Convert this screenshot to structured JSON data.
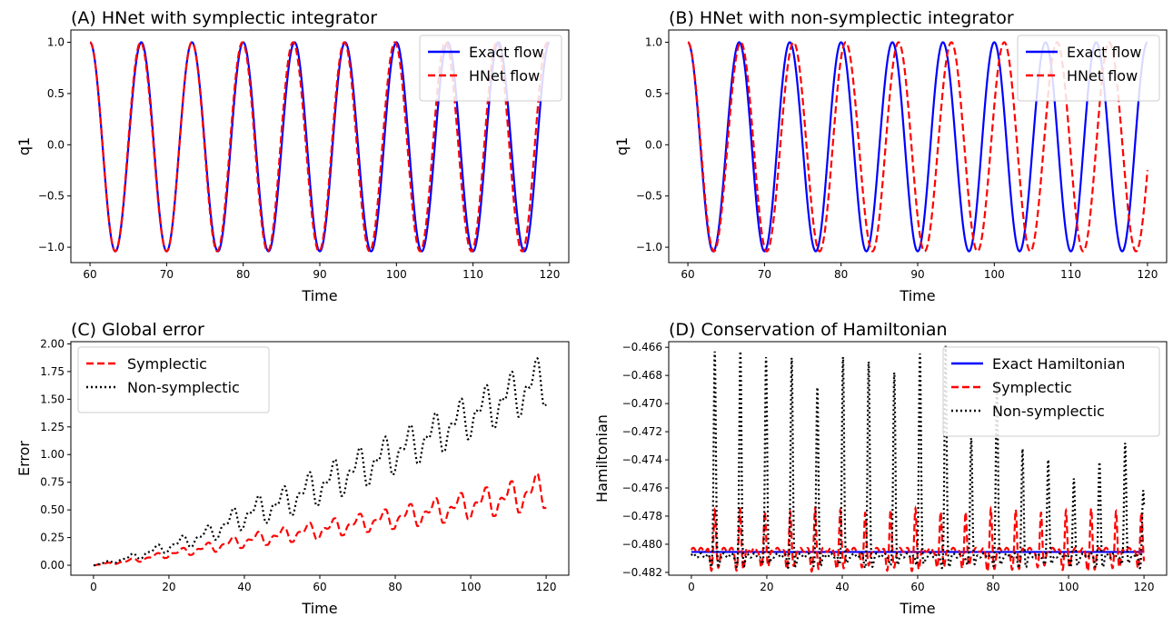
{
  "chart_data": [
    {
      "type": "line",
      "title": "(A) HNet with symplectic integrator",
      "xlabel": "Time",
      "ylabel": "q1",
      "xlim": [
        57.5,
        122.5
      ],
      "ylim": [
        -1.15,
        1.12
      ],
      "xticks": [
        60,
        70,
        80,
        90,
        100,
        110,
        120
      ],
      "yticks": [
        -1.0,
        -0.5,
        0.0,
        0.5,
        1.0
      ],
      "xtick_labels": [
        "60",
        "70",
        "80",
        "90",
        "100",
        "110",
        "120"
      ],
      "ytick_labels": [
        "−1.0",
        "−0.5",
        "0.0",
        "0.5",
        "1.0"
      ],
      "legend_position": "top-right",
      "series": [
        {
          "name": "Exact flow",
          "style": "solid",
          "color": "#0000ff",
          "description_formula": "cos(2*pi*(t-60)/6.67), amplitude 1.0, minimum -1.04",
          "peaks_x": [
            60.0,
            66.7,
            73.3,
            80.0,
            86.7,
            93.3,
            100.0,
            106.7,
            113.3,
            120.0
          ],
          "troughs_x": [
            63.3,
            70.0,
            76.7,
            83.3,
            90.0,
            96.7,
            103.3,
            110.0,
            116.7
          ],
          "y_max": 1.0,
          "y_min": -1.04
        },
        {
          "name": "HNet flow",
          "style": "dashed",
          "color": "#ff0000",
          "peaks_x": [
            60.0,
            66.6,
            73.3,
            79.9,
            86.5,
            93.2,
            99.8,
            106.4,
            113.1
          ],
          "troughs_x": [
            63.3,
            70.0,
            76.6,
            83.2,
            89.9,
            96.5,
            103.1,
            109.8,
            116.4
          ],
          "y_max": 1.0,
          "y_min": -1.04
        }
      ]
    },
    {
      "type": "line",
      "title": "(B) HNet with non-symplectic integrator",
      "xlabel": "Time",
      "ylabel": "q1",
      "xlim": [
        57.5,
        122.5
      ],
      "ylim": [
        -1.15,
        1.12
      ],
      "xticks": [
        60,
        70,
        80,
        90,
        100,
        110,
        120
      ],
      "yticks": [
        -1.0,
        -0.5,
        0.0,
        0.5,
        1.0
      ],
      "xtick_labels": [
        "60",
        "70",
        "80",
        "90",
        "100",
        "110",
        "120"
      ],
      "ytick_labels": [
        "−1.0",
        "−0.5",
        "0.0",
        "0.5",
        "1.0"
      ],
      "legend_position": "top-right",
      "series": [
        {
          "name": "Exact flow",
          "style": "solid",
          "color": "#0000ff",
          "peaks_x": [
            60.0,
            66.7,
            73.3,
            80.0,
            86.7,
            93.3,
            100.0,
            106.7,
            113.3,
            120.0
          ],
          "troughs_x": [
            63.3,
            70.0,
            76.7,
            83.3,
            90.0,
            96.7,
            103.3,
            110.0,
            116.7
          ],
          "y_max": 1.0,
          "y_min": -1.04
        },
        {
          "name": "HNet flow",
          "style": "dashed",
          "color": "#ff0000",
          "peaks_x": [
            60.0,
            66.9,
            73.8,
            80.6,
            87.5,
            94.4,
            101.3,
            108.2,
            115.0
          ],
          "troughs_x": [
            63.4,
            70.3,
            77.2,
            84.1,
            90.9,
            97.8,
            104.7,
            111.6,
            118.5
          ],
          "y_max": 1.0,
          "y_min": -1.04
        }
      ]
    },
    {
      "type": "line",
      "title": "(C) Global error",
      "xlabel": "Time",
      "ylabel": "Error",
      "xlim": [
        -6,
        126
      ],
      "ylim": [
        -0.09,
        2.02
      ],
      "xticks": [
        0,
        20,
        40,
        60,
        80,
        100,
        120
      ],
      "yticks": [
        0.0,
        0.25,
        0.5,
        0.75,
        1.0,
        1.25,
        1.5,
        1.75,
        2.0
      ],
      "xtick_labels": [
        "0",
        "20",
        "40",
        "60",
        "80",
        "100",
        "120"
      ],
      "ytick_labels": [
        "0.00",
        "0.25",
        "0.50",
        "0.75",
        "1.00",
        "1.25",
        "1.50",
        "1.75",
        "2.00"
      ],
      "legend_position": "top-left",
      "series": [
        {
          "name": "Symplectic",
          "style": "dashed",
          "color": "#ff0000",
          "x": [
            0,
            10,
            20,
            30,
            40,
            50,
            60,
            70,
            80,
            90,
            100,
            110,
            120
          ],
          "envelope_low": [
            0.0,
            0.02,
            0.07,
            0.11,
            0.16,
            0.2,
            0.24,
            0.29,
            0.33,
            0.37,
            0.42,
            0.46,
            0.52
          ],
          "envelope_high": [
            0.0,
            0.06,
            0.13,
            0.2,
            0.28,
            0.34,
            0.4,
            0.46,
            0.52,
            0.6,
            0.67,
            0.75,
            0.85
          ]
        },
        {
          "name": "Non-symplectic",
          "style": "dotted",
          "color": "#000000",
          "x": [
            0,
            10,
            20,
            30,
            40,
            50,
            60,
            70,
            80,
            90,
            100,
            110,
            120
          ],
          "envelope_low": [
            0.0,
            0.04,
            0.12,
            0.2,
            0.33,
            0.42,
            0.55,
            0.68,
            0.83,
            0.98,
            1.15,
            1.3,
            1.45
          ],
          "envelope_high": [
            0.0,
            0.1,
            0.22,
            0.35,
            0.58,
            0.7,
            0.89,
            1.05,
            1.2,
            1.36,
            1.55,
            1.73,
            1.91
          ]
        }
      ]
    },
    {
      "type": "line",
      "title": "(D) Conservation of Hamiltonian",
      "xlabel": "Time",
      "ylabel": "Hamiltonian",
      "xlim": [
        -6,
        126
      ],
      "ylim": [
        -0.4822,
        -0.4656
      ],
      "xticks": [
        0,
        20,
        40,
        60,
        80,
        100,
        120
      ],
      "yticks": [
        -0.482,
        -0.48,
        -0.478,
        -0.476,
        -0.474,
        -0.472,
        -0.47,
        -0.468,
        -0.466
      ],
      "xtick_labels": [
        "0",
        "20",
        "40",
        "60",
        "80",
        "100",
        "120"
      ],
      "ytick_labels": [
        "−0.482",
        "−0.480",
        "−0.478",
        "−0.476",
        "−0.474",
        "−0.472",
        "−0.470",
        "−0.468",
        "−0.466"
      ],
      "legend_position": "top-right",
      "series": [
        {
          "name": "Exact Hamiltonian",
          "style": "solid",
          "color": "#0000ff",
          "constant_y": -0.48055
        },
        {
          "name": "Symplectic",
          "style": "dashed",
          "color": "#ff0000",
          "baseline": -0.4804,
          "spike_x": [
            6.2,
            12.9,
            19.5,
            26.2,
            32.8,
            39.5,
            46.1,
            52.8,
            59.4,
            66.1,
            72.7,
            79.4,
            86.0,
            92.7,
            99.3,
            106.0,
            112.6,
            119.3
          ],
          "spike_peak": -0.4775,
          "dip_min": -0.4818
        },
        {
          "name": "Non-symplectic",
          "style": "dotted",
          "color": "#000000",
          "spike_x": [
            6.2,
            13.0,
            19.8,
            26.6,
            33.4,
            40.2,
            47.0,
            53.8,
            60.6,
            67.4,
            74.2,
            81.0,
            87.8,
            94.6,
            101.4,
            108.2,
            115.0,
            119.8
          ],
          "spike_peaks": [
            -0.4663,
            -0.4663,
            -0.4665,
            -0.4668,
            -0.4688,
            -0.4665,
            -0.4671,
            -0.4677,
            -0.4663,
            -0.466,
            -0.4723,
            -0.4684,
            -0.4733,
            -0.4738,
            -0.4753,
            -0.4742,
            -0.4726,
            -0.4762
          ],
          "baseline": -0.4808,
          "dip_min": -0.4816
        }
      ]
    }
  ]
}
